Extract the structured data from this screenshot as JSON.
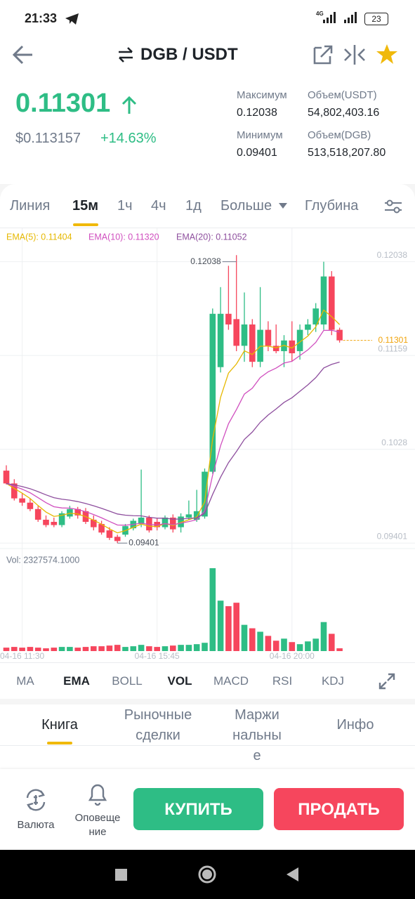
{
  "status_bar": {
    "time": "21:33",
    "network": "4G",
    "battery": "23"
  },
  "header": {
    "pair": "DGB / USDT"
  },
  "ticker": {
    "price": "0.11301",
    "usd_price": "$0.113157",
    "change": "+14.63%",
    "stats": [
      {
        "label": "Максимум",
        "value": "0.12038"
      },
      {
        "label": "Объем(USDT)",
        "value": "54,802,403.16"
      },
      {
        "label": "Минимум",
        "value": "0.09401"
      },
      {
        "label": "Объем(DGB)",
        "value": "513,518,207.80"
      }
    ]
  },
  "interval_tabs": [
    "Линия",
    "15м",
    "1ч",
    "4ч",
    "1д",
    "Больше",
    "Глубина"
  ],
  "chart_data": {
    "type": "candlestick",
    "ema": [
      {
        "label": "EMA(5): 0.11404",
        "period": 5,
        "color": "#e6b800"
      },
      {
        "label": "EMA(10): 0.11320",
        "period": 10,
        "color": "#d04fbf"
      },
      {
        "label": "EMA(20): 0.11052",
        "period": 20,
        "color": "#8e4f9e"
      }
    ],
    "up_color": "#2ebd85",
    "down_color": "#f6465d",
    "open": [
      0.1008,
      0.0996,
      0.0982,
      0.0978,
      0.0972,
      0.0962,
      0.096,
      0.0957,
      0.0965,
      0.0972,
      0.097,
      0.0962,
      0.0958,
      0.0952,
      0.0946,
      0.0948,
      0.0954,
      0.0958,
      0.0964,
      0.096,
      0.0955,
      0.0964,
      0.0955,
      0.0964,
      0.0962,
      0.0965,
      0.1007,
      0.1105,
      0.1155,
      0.115,
      0.1125,
      0.1145,
      0.111,
      0.114,
      0.1125,
      0.112,
      0.113,
      0.112,
      0.114,
      0.1145,
      0.1145,
      0.119,
      0.114
    ],
    "high": [
      0.1013,
      0.1,
      0.0987,
      0.0982,
      0.0975,
      0.0966,
      0.0964,
      0.097,
      0.0975,
      0.0974,
      0.0973,
      0.0966,
      0.0961,
      0.0955,
      0.0948,
      0.0958,
      0.0963,
      0.1009,
      0.0966,
      0.0963,
      0.0966,
      0.0967,
      0.0968,
      0.098,
      0.099,
      0.101,
      0.116,
      0.118,
      0.12,
      0.121,
      0.1175,
      0.115,
      0.118,
      0.1148,
      0.1145,
      0.1135,
      0.1148,
      0.1145,
      0.115,
      0.1165,
      0.12038,
      0.1195,
      0.1142
    ],
    "low": [
      0.0995,
      0.098,
      0.0975,
      0.097,
      0.096,
      0.0955,
      0.0955,
      0.0955,
      0.0963,
      0.0963,
      0.0958,
      0.0952,
      0.0948,
      0.0943,
      0.09401,
      0.0946,
      0.0952,
      0.0955,
      0.095,
      0.0952,
      0.0953,
      0.095,
      0.095,
      0.0962,
      0.096,
      0.0963,
      0.1005,
      0.11,
      0.114,
      0.112,
      0.111,
      0.1105,
      0.1105,
      0.112,
      0.1118,
      0.1105,
      0.111,
      0.1112,
      0.1135,
      0.1138,
      0.114,
      0.1135,
      0.1128
    ],
    "close": [
      0.0996,
      0.0982,
      0.0978,
      0.0972,
      0.0962,
      0.0957,
      0.0957,
      0.0968,
      0.0972,
      0.0966,
      0.096,
      0.0955,
      0.095,
      0.0945,
      0.0942,
      0.0956,
      0.0961,
      0.0964,
      0.0952,
      0.0955,
      0.0964,
      0.0953,
      0.0965,
      0.0967,
      0.097,
      0.1007,
      0.1155,
      0.1155,
      0.1145,
      0.1125,
      0.1145,
      0.111,
      0.114,
      0.1125,
      0.112,
      0.113,
      0.1118,
      0.114,
      0.1145,
      0.116,
      0.119,
      0.114,
      0.11301
    ],
    "volume": [
      2900000,
      3480000,
      2900000,
      3480000,
      2900000,
      2320000,
      2900000,
      3480000,
      3480000,
      2900000,
      3480000,
      4060000,
      4060000,
      4640000,
      5220000,
      3480000,
      4060000,
      5220000,
      4060000,
      3480000,
      4060000,
      4640000,
      5220000,
      5220000,
      5800000,
      6960000,
      69600000,
      42340000,
      37700000,
      40600000,
      22040000,
      19140000,
      16240000,
      12760000,
      8700000,
      10440000,
      7540000,
      5800000,
      8120000,
      10440000,
      24360000,
      14500000,
      2327574.1
    ],
    "volume_label": "Vol: 2327574.1000",
    "ylim": [
      0.0935,
      0.1222
    ],
    "yticks": [
      0.09401,
      0.1028,
      0.11159,
      0.12038
    ],
    "xticks": [
      {
        "value": 2,
        "label": "04-16 11:30"
      },
      {
        "value": 19,
        "label": "04-16 15:45"
      },
      {
        "value": 36,
        "label": "04-16 20:00"
      }
    ],
    "annotations": {
      "high": 0.12038,
      "low": 0.09401,
      "last": 0.11301
    },
    "last_color": "#f0a30a"
  },
  "indicator_tabs": [
    "MA",
    "EMA",
    "BOLL",
    "VOL",
    "MACD",
    "RSI",
    "KDJ"
  ],
  "section_tabs": [
    "Книга",
    "Рыночные сделки",
    "Маржинальные",
    "Инфо"
  ],
  "bottom_bar": {
    "currency": "Валюта",
    "alerts": "Оповещение",
    "buy": "КУПИТЬ",
    "sell": "ПРОДАТЬ"
  }
}
